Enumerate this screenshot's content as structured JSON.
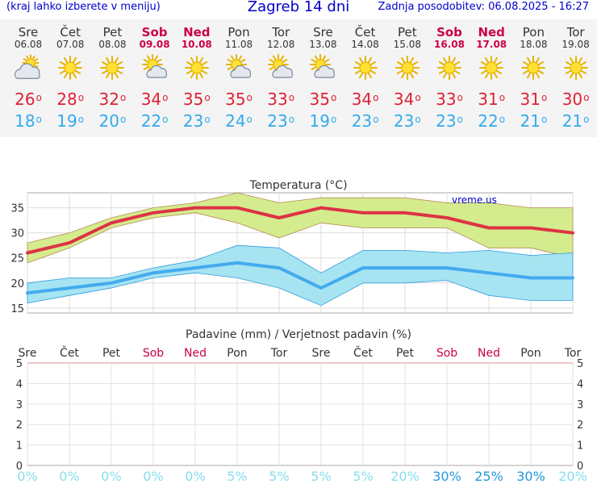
{
  "header": {
    "hint": "(kraj lahko izberete v meniju)",
    "title": "Zagreb 14 dni",
    "updated": "Zadnja posodobitev: 06.08.2025 - 16:27"
  },
  "days": [
    {
      "name": "Sre",
      "date": "06.08",
      "weekend": false,
      "icon": "partly-cloudy-icon",
      "tmax": "26",
      "tmin": "18"
    },
    {
      "name": "Čet",
      "date": "07.08",
      "weekend": false,
      "icon": "sun-icon",
      "tmax": "28",
      "tmin": "19"
    },
    {
      "name": "Pet",
      "date": "08.08",
      "weekend": false,
      "icon": "sun-icon",
      "tmax": "32",
      "tmin": "20"
    },
    {
      "name": "Sob",
      "date": "09.08",
      "weekend": true,
      "icon": "sun-behind-cloud-icon",
      "tmax": "34",
      "tmin": "22"
    },
    {
      "name": "Ned",
      "date": "10.08",
      "weekend": true,
      "icon": "sun-icon",
      "tmax": "35",
      "tmin": "23"
    },
    {
      "name": "Pon",
      "date": "11.08",
      "weekend": false,
      "icon": "sun-behind-cloud-icon",
      "tmax": "35",
      "tmin": "24"
    },
    {
      "name": "Tor",
      "date": "12.08",
      "weekend": false,
      "icon": "sun-behind-cloud-icon",
      "tmax": "33",
      "tmin": "23"
    },
    {
      "name": "Sre",
      "date": "13.08",
      "weekend": false,
      "icon": "sun-behind-cloud-icon",
      "tmax": "35",
      "tmin": "19"
    },
    {
      "name": "Čet",
      "date": "14.08",
      "weekend": false,
      "icon": "sun-icon",
      "tmax": "34",
      "tmin": "23"
    },
    {
      "name": "Pet",
      "date": "15.08",
      "weekend": false,
      "icon": "sun-icon",
      "tmax": "34",
      "tmin": "23"
    },
    {
      "name": "Sob",
      "date": "16.08",
      "weekend": true,
      "icon": "sun-icon",
      "tmax": "33",
      "tmin": "23"
    },
    {
      "name": "Ned",
      "date": "17.08",
      "weekend": true,
      "icon": "sun-icon",
      "tmax": "31",
      "tmin": "22"
    },
    {
      "name": "Pon",
      "date": "18.08",
      "weekend": false,
      "icon": "sun-icon",
      "tmax": "31",
      "tmin": "21"
    },
    {
      "name": "Tor",
      "date": "19.08",
      "weekend": false,
      "icon": "sun-icon",
      "tmax": "30",
      "tmin": "21"
    }
  ],
  "colors": {
    "max_line": "#dd3344",
    "max_band": "#d4ec8e",
    "min_line": "#44aaee",
    "min_band": "#a6e4f2",
    "weekend": "#cc0044",
    "prob_low": "#88ddee",
    "prob_high": "#2299dd",
    "rain_frame": "#dd8888"
  },
  "chart_data": [
    {
      "type": "line",
      "title": "Temperatura (°C)",
      "watermark": "vreme.us",
      "categories": [
        "Sre",
        "Čet",
        "Pet",
        "Sob",
        "Ned",
        "Pon",
        "Tor",
        "Sre",
        "Čet",
        "Pet",
        "Sob",
        "Ned",
        "Pon",
        "Tor"
      ],
      "ylim": [
        14,
        38
      ],
      "yticks": [
        15,
        20,
        25,
        30,
        35
      ],
      "grid": true,
      "series": [
        {
          "values": [
            26,
            28,
            32,
            34,
            35,
            35,
            33,
            35,
            34,
            34,
            33,
            31,
            31,
            30
          ]
        },
        {
          "values": [
            28,
            30,
            33,
            35,
            36,
            38,
            36,
            37,
            37,
            37,
            36,
            36,
            35,
            35
          ]
        },
        {
          "values": [
            24,
            27,
            31,
            33,
            34,
            32,
            29,
            32,
            31,
            31,
            31,
            27,
            27,
            25
          ]
        },
        {
          "values": [
            18,
            19,
            20,
            22,
            23,
            24,
            23,
            19,
            23,
            23,
            23,
            22,
            21,
            21
          ]
        },
        {
          "values": [
            20,
            21,
            21,
            23,
            24.5,
            27.5,
            27,
            22,
            26.5,
            26.5,
            26,
            26.5,
            25.5,
            26
          ]
        },
        {
          "values": [
            16,
            17.5,
            19,
            21,
            22,
            21,
            19,
            15.5,
            20,
            20,
            20.5,
            17.5,
            16.5,
            16.5
          ]
        }
      ]
    },
    {
      "type": "bar",
      "title": "Padavine (mm) / Verjetnost padavin (%)",
      "categories": [
        "Sre",
        "Čet",
        "Pet",
        "Sob",
        "Ned",
        "Pon",
        "Tor",
        "Sre",
        "Čet",
        "Pet",
        "Sob",
        "Ned",
        "Pon",
        "Tor"
      ],
      "ylim": [
        0,
        5
      ],
      "yticks": [
        0,
        1,
        2,
        3,
        4,
        5
      ],
      "grid": true,
      "values": [
        0,
        0,
        0,
        0,
        0,
        0,
        0,
        0,
        0,
        0,
        0,
        0,
        0,
        0
      ],
      "probability": [
        "0%",
        "0%",
        "0%",
        "0%",
        "0%",
        "5%",
        "5%",
        "5%",
        "5%",
        "20%",
        "30%",
        "25%",
        "30%",
        "20%"
      ]
    }
  ]
}
